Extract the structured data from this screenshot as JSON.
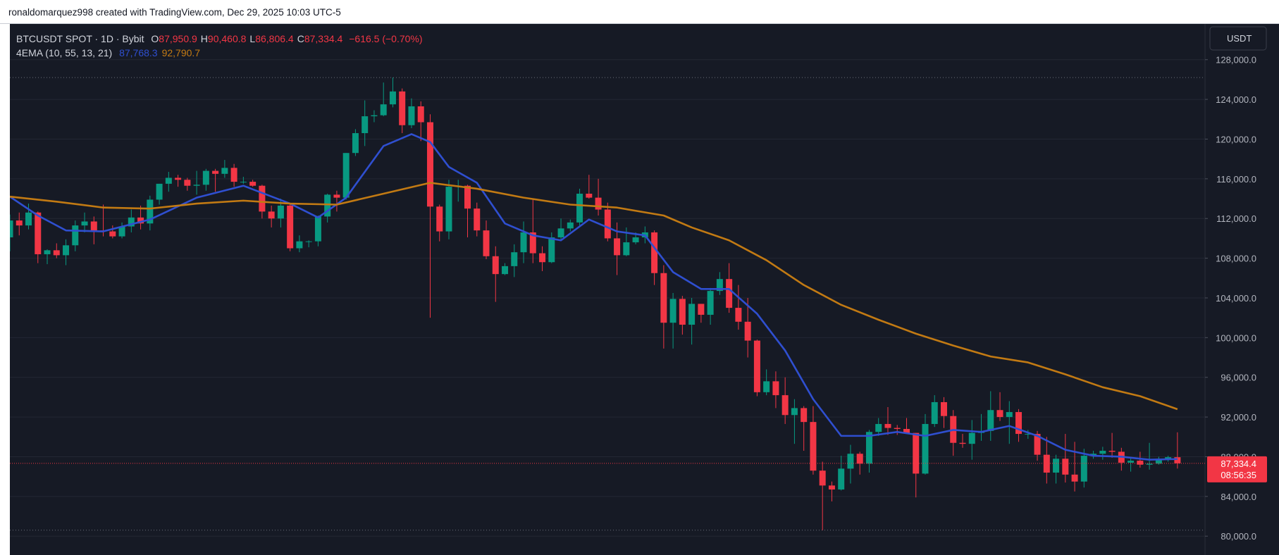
{
  "header": "ronaldomarquez998 created with TradingView.com, Dec 29, 2025 10:03 UTC-5",
  "chart_data": {
    "type": "candlestick",
    "symbol": "BTCUSDT SPOT · 1D · Bybit",
    "ohlc_letters": [
      "O",
      "H",
      "L",
      "C"
    ],
    "ohlc_labels": [
      "87,950.9",
      "90,460.8",
      "86,806.4",
      "87,334.4"
    ],
    "change": "−616.5 (−0.70%)",
    "indicator": "4EMA (10, 55, 13, 21)",
    "currency": "USDT",
    "countdown": "08:56:35",
    "up_color": "#089981",
    "down_color": "#f23645",
    "grid": true,
    "ylim": [
      78100,
      131600
    ],
    "yticks": [
      {
        "value": 80000,
        "label": "80,000.0"
      },
      {
        "value": 84000,
        "label": "84,000.0"
      },
      {
        "value": 88000,
        "label": "88,000.0"
      },
      {
        "value": 92000,
        "label": "92,000.0"
      },
      {
        "value": 96000,
        "label": "96,000.0"
      },
      {
        "value": 100000,
        "label": "100,000.0"
      },
      {
        "value": 104000,
        "label": "104,000.0"
      },
      {
        "value": 108000,
        "label": "108,000.0"
      },
      {
        "value": 112000,
        "label": "112,000.0"
      },
      {
        "value": 116000,
        "label": "116,000.0"
      },
      {
        "value": 120000,
        "label": "120,000.0"
      },
      {
        "value": 124000,
        "label": "124,000.0"
      },
      {
        "value": 128000,
        "label": "128,000.0"
      }
    ],
    "open": [
      110100,
      111800,
      111300,
      112600,
      108400,
      108800,
      108300,
      109300,
      111300,
      111700,
      110800,
      110700,
      110200,
      111200,
      112100,
      111500,
      113900,
      115500,
      116100,
      115900,
      115300,
      115400,
      116800,
      116500,
      117100,
      115700,
      115700,
      115300,
      112700,
      112000,
      113300,
      109000,
      109700,
      109700,
      112200,
      114400,
      114100,
      118600,
      120600,
      122300,
      122400,
      123500,
      124800,
      121400,
      123300,
      121700,
      113200,
      110700,
      115200,
      115300,
      113000,
      110800,
      108200,
      106400,
      107200,
      108600,
      110600,
      108500,
      107600,
      110100,
      111000,
      111600,
      114500,
      114100,
      112900,
      110000,
      108300,
      109600,
      110100,
      110600,
      106500,
      101500,
      103900,
      101300,
      103400,
      102300,
      104700,
      105900,
      103000,
      101600,
      99700,
      94500,
      95600,
      94200,
      92200,
      92900,
      91500,
      86600,
      85100,
      84700,
      86800,
      88300,
      87300,
      90500,
      91300,
      90900,
      90800,
      90400,
      86300,
      91300,
      93500,
      92100,
      89400,
      89300,
      90400,
      90600,
      92700,
      92000,
      92500,
      90300,
      90300,
      88200,
      86400,
      87800,
      86200,
      85500,
      88100,
      88300,
      88600,
      88500,
      87400,
      87600,
      87200,
      87300,
      87800,
      87950.9
    ],
    "high": [
      112400,
      112600,
      113500,
      112700,
      108900,
      109500,
      109900,
      111800,
      112600,
      112200,
      113400,
      111300,
      111600,
      112900,
      113300,
      114300,
      115500,
      116700,
      116400,
      116100,
      116800,
      117000,
      117000,
      117900,
      117500,
      116200,
      115900,
      115400,
      113300,
      114000,
      113500,
      110300,
      109800,
      112300,
      114500,
      114800,
      118600,
      121000,
      123900,
      122900,
      125700,
      126200,
      125100,
      124100,
      123800,
      122500,
      113400,
      115900,
      115900,
      115400,
      113600,
      111800,
      109200,
      107500,
      109400,
      111700,
      114000,
      109200,
      110600,
      112000,
      111900,
      115000,
      116400,
      116000,
      113600,
      111600,
      111100,
      110600,
      111200,
      110800,
      107300,
      104500,
      104200,
      104000,
      103400,
      105000,
      106600,
      107500,
      105300,
      104000,
      99800,
      96800,
      96600,
      96000,
      93800,
      93100,
      93100,
      87500,
      85500,
      88100,
      89200,
      88500,
      90700,
      91900,
      93000,
      91200,
      91900,
      90400,
      92300,
      94200,
      94000,
      92700,
      90300,
      91700,
      92300,
      94600,
      94500,
      93600,
      92800,
      90700,
      90600,
      90000,
      88200,
      90300,
      89500,
      88800,
      88600,
      89000,
      90400,
      88900,
      88000,
      88500,
      89400,
      88000,
      88100,
      90460.8
    ],
    "low": [
      108700,
      110300,
      110900,
      107500,
      107400,
      108000,
      107300,
      108700,
      110600,
      109400,
      110200,
      110000,
      110000,
      110600,
      110900,
      110800,
      113400,
      114700,
      115200,
      114800,
      114400,
      114800,
      114700,
      116100,
      115200,
      115500,
      115200,
      112000,
      111100,
      111100,
      108700,
      108600,
      109100,
      109200,
      111600,
      112700,
      113900,
      118300,
      119300,
      121700,
      122300,
      123200,
      120600,
      121100,
      119800,
      102000,
      109700,
      109900,
      113700,
      110100,
      110200,
      107900,
      103600,
      106300,
      106100,
      107500,
      107500,
      106700,
      107500,
      109800,
      110700,
      111300,
      114000,
      112300,
      109700,
      106300,
      108200,
      109400,
      109500,
      105300,
      98900,
      98900,
      100300,
      99300,
      101500,
      101300,
      104300,
      102500,
      100800,
      98000,
      94100,
      94200,
      92900,
      91300,
      89300,
      88600,
      86200,
      80600,
      83500,
      84600,
      85300,
      86200,
      86400,
      90100,
      90200,
      90200,
      90300,
      83900,
      86200,
      91000,
      90900,
      88100,
      88900,
      87700,
      89600,
      89600,
      91600,
      89300,
      89500,
      89800,
      87600,
      85300,
      85300,
      85400,
      84500,
      84900,
      87800,
      87700,
      87900,
      86600,
      86500,
      86900,
      86700,
      87200,
      87500,
      86806.4
    ],
    "close": [
      111800,
      111300,
      112600,
      108400,
      108800,
      108300,
      109300,
      111300,
      111700,
      110800,
      110700,
      110200,
      111200,
      112100,
      111500,
      113900,
      115500,
      116100,
      115900,
      115300,
      115400,
      116800,
      116500,
      117100,
      115700,
      115700,
      115300,
      112700,
      112000,
      113300,
      109000,
      109700,
      109700,
      112200,
      114400,
      114100,
      118600,
      120600,
      122300,
      122400,
      123500,
      124800,
      121400,
      123300,
      121700,
      113200,
      110700,
      115200,
      115300,
      113000,
      110800,
      108200,
      106400,
      107200,
      108600,
      110600,
      108500,
      107600,
      110100,
      111000,
      111600,
      114500,
      114100,
      112900,
      110000,
      108300,
      109600,
      110100,
      110600,
      106500,
      101500,
      103900,
      101300,
      103400,
      102300,
      104700,
      105900,
      103000,
      101600,
      99700,
      94500,
      95600,
      94200,
      92200,
      92900,
      91500,
      86600,
      85100,
      84700,
      86800,
      88300,
      87300,
      90500,
      91300,
      90900,
      90800,
      90400,
      86300,
      91300,
      93500,
      92100,
      89400,
      89300,
      90400,
      90600,
      92700,
      92000,
      92500,
      90300,
      90300,
      88200,
      86400,
      87800,
      86200,
      85500,
      88100,
      88300,
      88600,
      88500,
      87400,
      87600,
      87200,
      87300,
      87800,
      87950.9,
      87334.4
    ],
    "series": [
      {
        "color": "#2f4fd0",
        "value_label": "87,768.3",
        "x": [
          0,
          3,
          6,
          10,
          15,
          20,
          25,
          30,
          33,
          36,
          40,
          43,
          45,
          47,
          50,
          53,
          56,
          59,
          62,
          65,
          68,
          71,
          74,
          77,
          80,
          83,
          86,
          89,
          92,
          95,
          98,
          101,
          104,
          107,
          110,
          113,
          116,
          119,
          122,
          125
        ],
        "values": [
          114200,
          112300,
          110800,
          110700,
          111900,
          114100,
          115300,
          113500,
          112100,
          114100,
          119300,
          120500,
          119700,
          117200,
          115600,
          111500,
          110300,
          109800,
          111900,
          110700,
          110300,
          106600,
          104900,
          104900,
          102400,
          98700,
          93800,
          90100,
          90100,
          90500,
          90100,
          90700,
          90500,
          91100,
          90100,
          88700,
          88100,
          88000,
          87700,
          87768.3
        ]
      },
      {
        "color": "#c27a13",
        "value_label": "92,790.7",
        "x": [
          0,
          5,
          10,
          15,
          20,
          25,
          30,
          35,
          40,
          45,
          50,
          55,
          60,
          65,
          70,
          73,
          77,
          81,
          85,
          89,
          93,
          97,
          101,
          105,
          109,
          113,
          117,
          121,
          125
        ],
        "values": [
          114200,
          113700,
          113100,
          113000,
          113500,
          113800,
          113500,
          113400,
          114500,
          115600,
          115000,
          114100,
          113400,
          113100,
          112300,
          111100,
          109800,
          107800,
          105300,
          103300,
          101800,
          100400,
          99200,
          98100,
          97500,
          96300,
          95000,
          94100,
          92790.7
        ]
      }
    ]
  }
}
